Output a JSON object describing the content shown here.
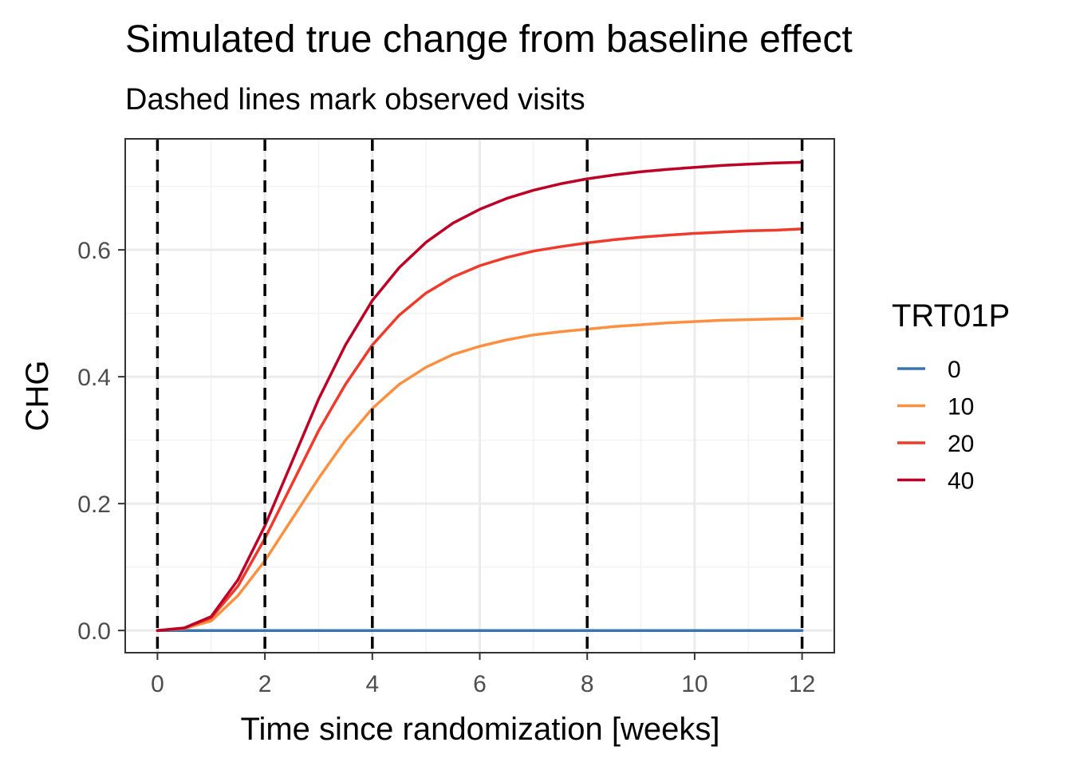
{
  "chart_data": {
    "type": "line",
    "title": "Simulated true change from baseline effect",
    "subtitle": "Dashed lines mark observed visits",
    "xlabel": "Time since randomization [weeks]",
    "ylabel": "CHG",
    "xlim": [
      -0.6,
      12.6
    ],
    "ylim": [
      -0.035,
      0.775
    ],
    "x_ticks": [
      0,
      2,
      4,
      6,
      8,
      10,
      12
    ],
    "x_tick_labels": [
      "0",
      "2",
      "4",
      "6",
      "8",
      "10",
      "12"
    ],
    "y_ticks": [
      0.0,
      0.2,
      0.4,
      0.6
    ],
    "y_tick_labels": [
      "0.0",
      "0.2",
      "0.4",
      "0.6"
    ],
    "grid": true,
    "observed_visits": [
      0,
      2,
      4,
      8,
      12
    ],
    "legend": {
      "title": "TRT01P",
      "placement": "right"
    },
    "x": [
      0,
      0.5,
      1,
      1.5,
      2,
      2.5,
      3,
      3.5,
      4,
      4.5,
      5,
      5.5,
      6,
      6.5,
      7,
      7.5,
      8,
      8.5,
      9,
      9.5,
      10,
      10.5,
      11,
      11.5,
      12
    ],
    "series": [
      {
        "name": "0",
        "color": "#3b75af",
        "values": [
          0,
          0,
          0,
          0,
          0,
          0,
          0,
          0,
          0,
          0,
          0,
          0,
          0,
          0,
          0,
          0,
          0,
          0,
          0,
          0,
          0,
          0,
          0,
          0,
          0
        ]
      },
      {
        "name": "10",
        "color": "#fd9040",
        "values": [
          0,
          0.003,
          0.015,
          0.055,
          0.11,
          0.175,
          0.24,
          0.3,
          0.35,
          0.388,
          0.415,
          0.435,
          0.448,
          0.458,
          0.466,
          0.471,
          0.475,
          0.479,
          0.482,
          0.485,
          0.487,
          0.489,
          0.49,
          0.491,
          0.492
        ]
      },
      {
        "name": "20",
        "color": "#ef3b2c",
        "values": [
          0,
          0.004,
          0.02,
          0.07,
          0.145,
          0.23,
          0.315,
          0.388,
          0.45,
          0.497,
          0.532,
          0.557,
          0.575,
          0.588,
          0.598,
          0.605,
          0.611,
          0.616,
          0.62,
          0.623,
          0.626,
          0.628,
          0.63,
          0.631,
          0.633
        ]
      },
      {
        "name": "40",
        "color": "#bd0026",
        "values": [
          0,
          0.004,
          0.022,
          0.08,
          0.165,
          0.265,
          0.365,
          0.45,
          0.52,
          0.572,
          0.612,
          0.642,
          0.664,
          0.681,
          0.694,
          0.704,
          0.712,
          0.718,
          0.723,
          0.727,
          0.73,
          0.733,
          0.735,
          0.737,
          0.738
        ]
      }
    ]
  }
}
